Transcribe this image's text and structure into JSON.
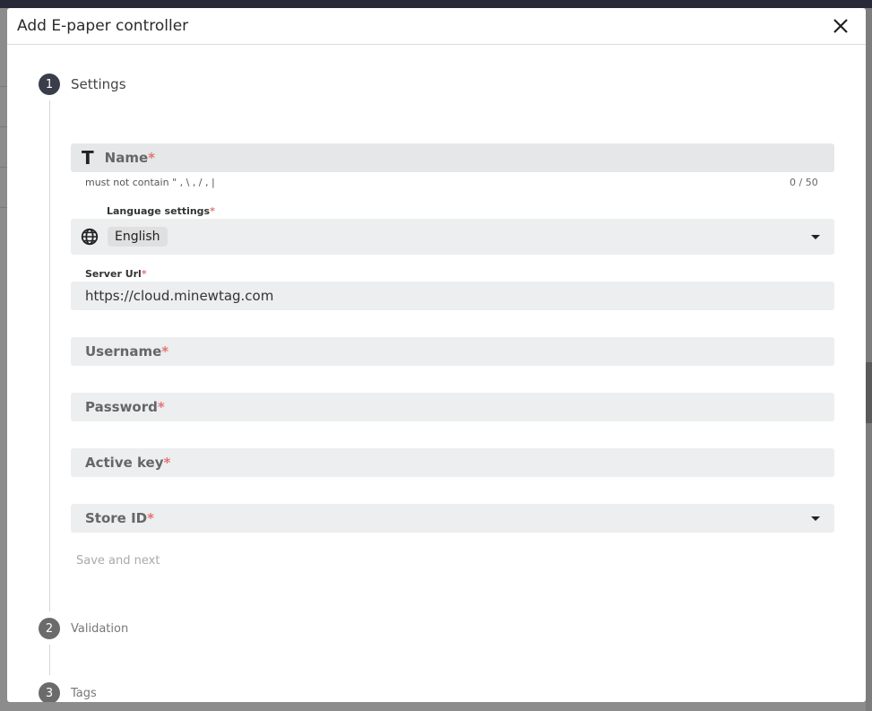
{
  "dialog": {
    "title": "Add E-paper controller",
    "close_icon": "close-icon"
  },
  "steps": [
    {
      "number": "1",
      "label": "Settings",
      "active": true
    },
    {
      "number": "2",
      "label": "Validation"
    },
    {
      "number": "3",
      "label": "Tags"
    }
  ],
  "form": {
    "name": {
      "label": "Name",
      "required": "*",
      "hint": "must not contain \" , \\ , / , |",
      "counter": "0 / 50"
    },
    "language": {
      "label": "Language settings",
      "required": "*",
      "value": "English"
    },
    "server_url": {
      "label": "Server Url",
      "required": "*",
      "value": "https://cloud.minewtag.com"
    },
    "username": {
      "label": "Username",
      "required": "*"
    },
    "password": {
      "label": "Password",
      "required": "*"
    },
    "active_key": {
      "label": "Active key",
      "required": "*"
    },
    "store_id": {
      "label": "Store ID",
      "required": "*"
    },
    "save_next": "Save and next"
  },
  "colors": {
    "active_step": "#3a3d4a",
    "inactive_step": "#6b6b6b",
    "required": "#e57373"
  }
}
